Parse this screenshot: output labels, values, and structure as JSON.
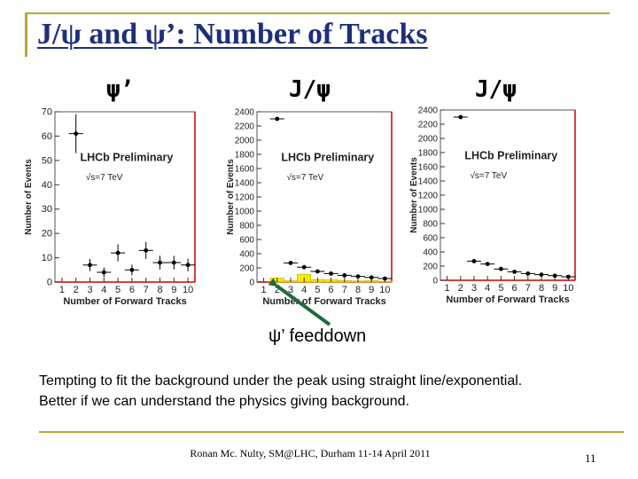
{
  "title": "J/ψ and ψ’: Number of Tracks",
  "plot_labels": [
    "ψ’",
    "J/ψ",
    "J/ψ"
  ],
  "arrow_label": "ψ’ feeddown",
  "body_lines": [
    "Tempting to fit the background under the peak using straight line/exponential.",
    "Better if we can understand the physics giving background."
  ],
  "footer": "Ronan Mc. Nulty, SM@LHC, Durham 11-14 April 2011",
  "page_number": "11",
  "colors": {
    "title": "#1e2f7a",
    "rule": "#b8a830",
    "frame_red": "#cc0000",
    "hist_fill": "#f5ec00",
    "hist_edge": "#c8b800",
    "arrow": "#1f6b3a"
  },
  "chart_data": [
    {
      "type": "scatter",
      "xlabel": "Number of Forward Tracks",
      "ylabel": "Number of Events",
      "annotation": "LHCb Preliminary",
      "energy": "√s=7 TeV",
      "xlim": [
        0.5,
        10.5
      ],
      "ylim": [
        0,
        70
      ],
      "xticks": [
        1,
        2,
        3,
        4,
        5,
        6,
        7,
        8,
        9,
        10
      ],
      "yticks": [
        0,
        10,
        20,
        30,
        40,
        50,
        60,
        70
      ],
      "series": [
        {
          "x": [
            2,
            3,
            4,
            5,
            6,
            7,
            8,
            9,
            10
          ],
          "y": [
            61,
            7,
            4,
            12,
            5,
            13,
            8,
            8,
            7
          ],
          "yerr": [
            8,
            2.5,
            2,
            3.5,
            2.2,
            3.5,
            2.8,
            2.8,
            2.6
          ]
        }
      ]
    },
    {
      "type": "scatter",
      "xlabel": "Number of Forward Tracks",
      "ylabel": "Number of Events",
      "annotation": "LHCb Preliminary",
      "energy": "√s=7 TeV",
      "xlim": [
        0.5,
        10.5
      ],
      "ylim": [
        0,
        2400
      ],
      "xticks": [
        1,
        2,
        3,
        4,
        5,
        6,
        7,
        8,
        9,
        10
      ],
      "yticks": [
        0,
        200,
        400,
        600,
        800,
        1000,
        1200,
        1400,
        1600,
        1800,
        2000,
        2200,
        2400
      ],
      "series": [
        {
          "x": [
            2,
            3,
            4,
            5,
            6,
            7,
            8,
            9,
            10
          ],
          "y": [
            2300,
            270,
            210,
            150,
            120,
            95,
            80,
            65,
            50
          ]
        }
      ],
      "histogram": {
        "x": [
          2,
          3,
          4,
          5,
          6,
          7,
          8,
          9,
          10
        ],
        "y": [
          55,
          18,
          110,
          35,
          30,
          20,
          15,
          20,
          10
        ]
      }
    },
    {
      "type": "scatter",
      "xlabel": "Number of Forward Tracks",
      "ylabel": "Number of Events",
      "annotation": "LHCb Preliminary",
      "energy": "√s=7 TeV",
      "xlim": [
        0.5,
        10.5
      ],
      "ylim": [
        0,
        2400
      ],
      "xticks": [
        1,
        2,
        3,
        4,
        5,
        6,
        7,
        8,
        9,
        10
      ],
      "yticks": [
        0,
        200,
        400,
        600,
        800,
        1000,
        1200,
        1400,
        1600,
        1800,
        2000,
        2200,
        2400
      ],
      "series": [
        {
          "x": [
            2,
            3,
            4,
            5,
            6,
            7,
            8,
            9,
            10
          ],
          "y": [
            2300,
            270,
            230,
            160,
            120,
            95,
            80,
            65,
            50
          ]
        }
      ]
    }
  ]
}
